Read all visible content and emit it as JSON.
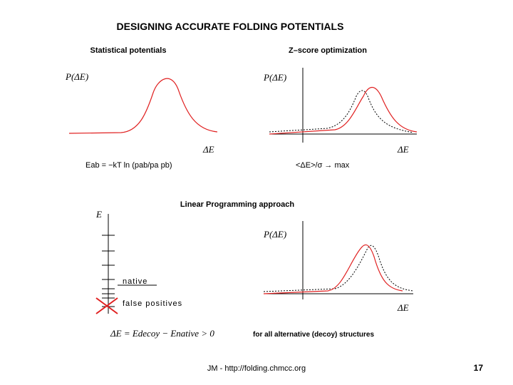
{
  "header": {
    "title": "DESIGNING ACCURATE FOLDING POTENTIALS"
  },
  "panels": [
    {
      "title": "Statistical potentials",
      "y_label": "P(ΔE)",
      "x_label": "ΔE",
      "formula": "Eab = −kT ln (pab/pa pb)"
    },
    {
      "title": "Z–score optimization",
      "y_label": "P(ΔE)",
      "x_label": "ΔE",
      "formula": "<ΔE>/σ → max"
    },
    {
      "title": "Linear Programming approach",
      "y_label": "E",
      "native": "native",
      "false_positives": "false positives"
    },
    {
      "y_label": "P(ΔE)",
      "x_label": "ΔE",
      "formula": "ΔE = Edecoy − Enative > 0",
      "note": "for all alternative (decoy) structures"
    }
  ],
  "footer": {
    "credit": "JM - http://folding.chmcc.org",
    "page": "17"
  }
}
